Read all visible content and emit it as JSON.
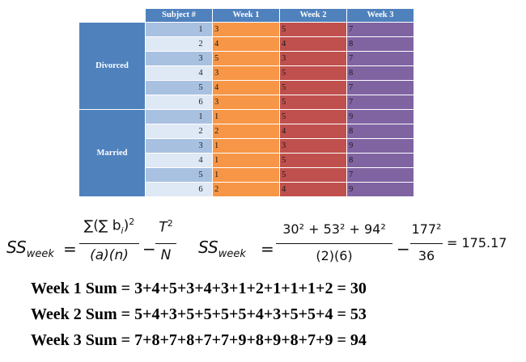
{
  "table": {
    "headers": [
      "Subject #",
      "Week 1",
      "Week 2",
      "Week 3"
    ],
    "groups": [
      {
        "label": "Divorced",
        "rows": [
          {
            "subject": "1",
            "w1": "3",
            "w2": "5",
            "w3": "7"
          },
          {
            "subject": "2",
            "w1": "4",
            "w2": "4",
            "w3": "8"
          },
          {
            "subject": "3",
            "w1": "5",
            "w2": "3",
            "w3": "7"
          },
          {
            "subject": "4",
            "w1": "3",
            "w2": "5",
            "w3": "8"
          },
          {
            "subject": "5",
            "w1": "4",
            "w2": "5",
            "w3": "7"
          },
          {
            "subject": "6",
            "w1": "3",
            "w2": "5",
            "w3": "7"
          }
        ]
      },
      {
        "label": "Married",
        "rows": [
          {
            "subject": "1",
            "w1": "1",
            "w2": "5",
            "w3": "9"
          },
          {
            "subject": "2",
            "w1": "2",
            "w2": "4",
            "w3": "8"
          },
          {
            "subject": "3",
            "w1": "1",
            "w2": "3",
            "w3": "9"
          },
          {
            "subject": "4",
            "w1": "1",
            "w2": "5",
            "w3": "8"
          },
          {
            "subject": "5",
            "w1": "1",
            "w2": "5",
            "w3": "7"
          },
          {
            "subject": "6",
            "w1": "2",
            "w2": "4",
            "w3": "9"
          }
        ]
      }
    ]
  },
  "formula_general": {
    "lhs_main": "SS",
    "lhs_sub": "week",
    "numerator": "∑(∑ b",
    "numerator_sub": "i",
    "numerator_tail": ")",
    "numerator_sup": "2",
    "denominator": "(a)(n)",
    "minus": "−",
    "t_main": "T",
    "t_sup": "2",
    "n": "N"
  },
  "formula_numeric": {
    "lhs_main": "SS",
    "lhs_sub": "week",
    "numerator": "30² + 53² + 94²",
    "denominator": "(2)(6)",
    "minus": "−",
    "t_num": "177²",
    "t_den": "36",
    "result": "= 175.17"
  },
  "sums": [
    "Week 1 Sum = 3+4+5+3+4+3+1+2+1+1+1+2 = 30",
    "Week 2 Sum = 5+4+3+5+5+5+5+4+3+5+5+4 = 53",
    "Week 3 Sum = 7+8+7+8+7+7+9+8+9+8+7+9 = 94"
  ]
}
